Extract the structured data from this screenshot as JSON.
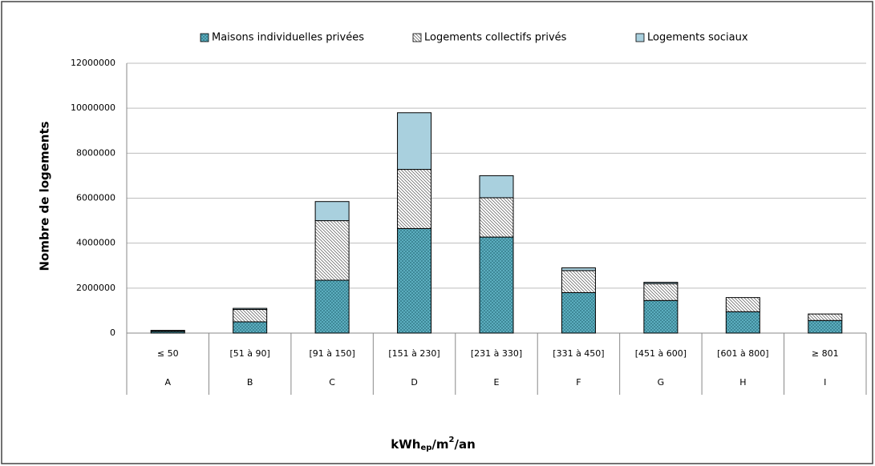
{
  "chart_data": {
    "type": "stacked_bar",
    "y_label": "Nombre de logements",
    "x_label": [
      "kWh",
      "ep",
      "/m",
      "2",
      "/an"
    ],
    "categories": [
      "≤ 50",
      "[51 à 90]",
      "[91 à 150]",
      "[151 à 230]",
      "[231 à 330]",
      "[331 à 450]",
      "[451 à 600]",
      "[601 à 800]",
      "≥ 801"
    ],
    "classes": [
      "A",
      "B",
      "C",
      "D",
      "E",
      "F",
      "G",
      "H",
      "I"
    ],
    "series": [
      {
        "name": "Maisons individuelles privées",
        "color": "#5fb3c4",
        "hatch": "dots",
        "values": [
          70000,
          500000,
          2350000,
          4650000,
          4270000,
          1800000,
          1450000,
          950000,
          560000
        ]
      },
      {
        "name": "Logements collectifs privés",
        "color": "#ffffff",
        "hatch": "diagonal",
        "values": [
          40000,
          550000,
          2650000,
          2630000,
          1750000,
          980000,
          750000,
          630000,
          290000
        ]
      },
      {
        "name": "Logements sociaux",
        "color": "#a9d0de",
        "hatch": "none",
        "values": [
          10000,
          50000,
          850000,
          2520000,
          980000,
          120000,
          60000,
          0,
          0
        ]
      }
    ],
    "ylim": [
      0,
      12000000
    ],
    "yticks": [
      0,
      2000000,
      4000000,
      6000000,
      8000000,
      10000000,
      12000000
    ],
    "grid": true,
    "legend": "top"
  }
}
